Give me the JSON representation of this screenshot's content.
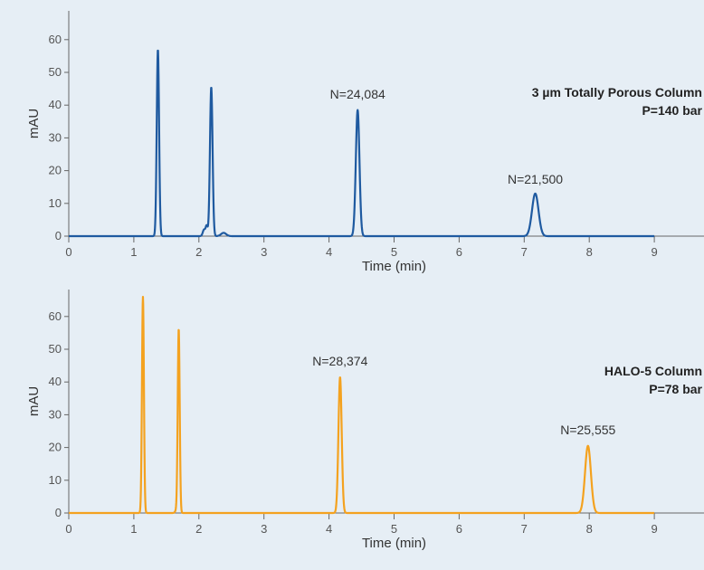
{
  "chart_data": [
    {
      "type": "line",
      "title": "",
      "xlabel": "Time (min)",
      "ylabel": "mAU",
      "xlim": [
        0,
        9
      ],
      "ylim": [
        -3,
        67
      ],
      "x_ticks": [
        0,
        1,
        2,
        3,
        4,
        5,
        6,
        7,
        8,
        9
      ],
      "y_ticks": [
        0,
        10,
        20,
        30,
        40,
        50,
        60
      ],
      "color": "#1f5aa0",
      "grid": false,
      "column_label": [
        "3 µm Totally Porous Column",
        "P=140 bar"
      ],
      "series": [
        {
          "peaks": [
            {
              "t": 1.37,
              "h": 57,
              "w": 0.018
            },
            {
              "t": 2.08,
              "h": 2,
              "w": 0.02
            },
            {
              "t": 2.12,
              "h": 3,
              "w": 0.015
            },
            {
              "t": 2.19,
              "h": 45.5,
              "w": 0.02
            },
            {
              "t": 2.38,
              "h": 1,
              "w": 0.04
            },
            {
              "t": 4.44,
              "h": 38.5,
              "w": 0.028
            },
            {
              "t": 7.17,
              "h": 13,
              "w": 0.05
            }
          ]
        }
      ],
      "annotations": [
        {
          "text": "N=24,084",
          "x": 4.44,
          "y": 42
        },
        {
          "text": "N=21,500",
          "x": 7.17,
          "y": 16
        }
      ]
    },
    {
      "type": "line",
      "title": "",
      "xlabel": "Time (min)",
      "ylabel": "mAU",
      "xlim": [
        0,
        9
      ],
      "ylim": [
        -3,
        67
      ],
      "x_ticks": [
        0,
        1,
        2,
        3,
        4,
        5,
        6,
        7,
        8,
        9
      ],
      "y_ticks": [
        0,
        10,
        20,
        30,
        40,
        50,
        60
      ],
      "color": "#f4a21f",
      "grid": false,
      "column_label": [
        "HALO-5 Column",
        "P=78 bar"
      ],
      "series": [
        {
          "peaks": [
            {
              "t": 1.14,
              "h": 66,
              "w": 0.015
            },
            {
              "t": 1.66,
              "h": 1,
              "w": 0.02
            },
            {
              "t": 1.69,
              "h": 56,
              "w": 0.015
            },
            {
              "t": 4.17,
              "h": 41.5,
              "w": 0.025
            },
            {
              "t": 7.98,
              "h": 20.5,
              "w": 0.045
            }
          ]
        }
      ],
      "annotations": [
        {
          "text": "N=28,374",
          "x": 4.17,
          "y": 45
        },
        {
          "text": "N=25,555",
          "x": 7.98,
          "y": 24
        }
      ]
    }
  ]
}
